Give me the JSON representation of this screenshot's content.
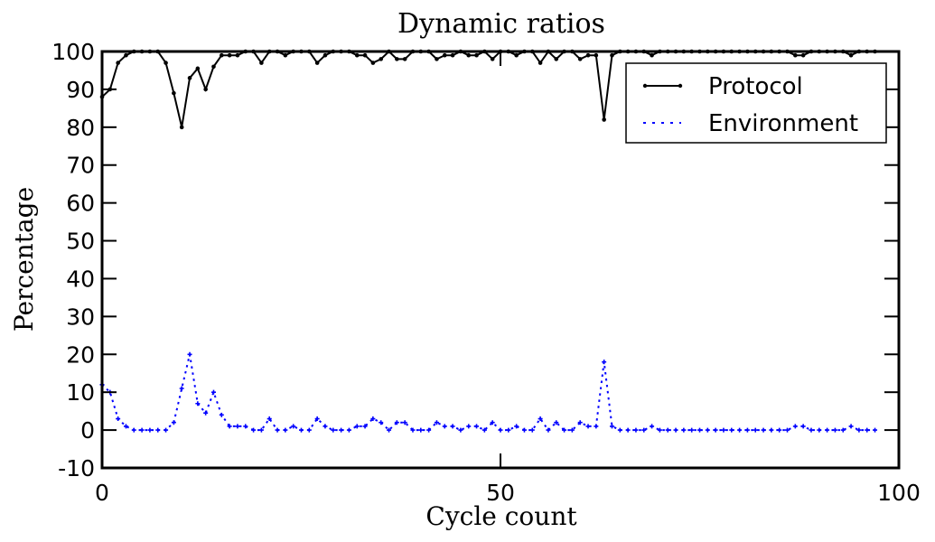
{
  "chart_data": {
    "type": "line",
    "title": "Dynamic ratios",
    "xlabel": "Cycle count",
    "ylabel": "Percentage",
    "xlim": [
      0,
      100
    ],
    "ylim": [
      -10,
      100
    ],
    "x_ticks": [
      "0",
      "50",
      "100"
    ],
    "y_ticks": [
      "-10",
      "0",
      "10",
      "20",
      "30",
      "40",
      "50",
      "60",
      "70",
      "80",
      "90",
      "100"
    ],
    "grid": false,
    "legend_position": "top-right",
    "x": [
      0,
      1,
      2,
      3,
      4,
      5,
      6,
      7,
      8,
      9,
      10,
      11,
      12,
      13,
      14,
      15,
      16,
      17,
      18,
      19,
      20,
      21,
      22,
      23,
      24,
      25,
      26,
      27,
      28,
      29,
      30,
      31,
      32,
      33,
      34,
      35,
      36,
      37,
      38,
      39,
      40,
      41,
      42,
      43,
      44,
      45,
      46,
      47,
      48,
      49,
      50,
      51,
      52,
      53,
      54,
      55,
      56,
      57,
      58,
      59,
      60,
      61,
      62,
      63,
      64,
      65,
      66,
      67,
      68,
      69,
      70,
      71,
      72,
      73,
      74,
      75,
      76,
      77,
      78,
      79,
      80,
      81,
      82,
      83,
      84,
      85,
      86,
      87,
      88,
      89,
      90,
      91,
      92,
      93,
      94,
      95,
      96,
      97
    ],
    "series": [
      {
        "name": "Protocol",
        "color": "#000000",
        "style": "solid",
        "values": [
          88,
          90,
          97,
          99,
          100,
          100,
          100,
          100,
          97,
          89,
          80,
          93,
          95.5,
          90,
          96,
          99,
          99,
          99,
          100,
          100,
          97,
          100,
          100,
          99,
          100,
          100,
          100,
          97,
          99,
          100,
          100,
          100,
          99,
          99,
          97,
          98,
          100,
          98,
          98,
          100,
          100,
          100,
          98,
          99,
          99,
          100,
          99,
          99,
          100,
          98,
          100,
          100,
          99,
          100,
          100,
          97,
          100,
          98,
          100,
          100,
          98,
          99,
          99,
          82,
          99,
          100,
          100,
          100,
          100,
          99,
          100,
          100,
          100,
          100,
          100,
          100,
          100,
          100,
          100,
          100,
          100,
          100,
          100,
          100,
          100,
          100,
          100,
          99,
          99,
          100,
          100,
          100,
          100,
          100,
          99,
          100,
          100,
          100
        ]
      },
      {
        "name": "Environment",
        "color": "#0000ff",
        "style": "dotted",
        "values": [
          12,
          10,
          3,
          1,
          0,
          0,
          0,
          0,
          0,
          2,
          11,
          20,
          7,
          4.5,
          10,
          4,
          1,
          1,
          1,
          0,
          0,
          3,
          0,
          0,
          1,
          0,
          0,
          3,
          1,
          0,
          0,
          0,
          1,
          1,
          3,
          2,
          0,
          2,
          2,
          0,
          0,
          0,
          2,
          1,
          1,
          0,
          1,
          1,
          0,
          2,
          0,
          0,
          1,
          0,
          0,
          3,
          0,
          2,
          0,
          0,
          2,
          1,
          1,
          18,
          1,
          0,
          0,
          0,
          0,
          1,
          0,
          0,
          0,
          0,
          0,
          0,
          0,
          0,
          0,
          0,
          0,
          0,
          0,
          0,
          0,
          0,
          0,
          1,
          1,
          0,
          0,
          0,
          0,
          0,
          1,
          0,
          0,
          0
        ]
      }
    ]
  }
}
